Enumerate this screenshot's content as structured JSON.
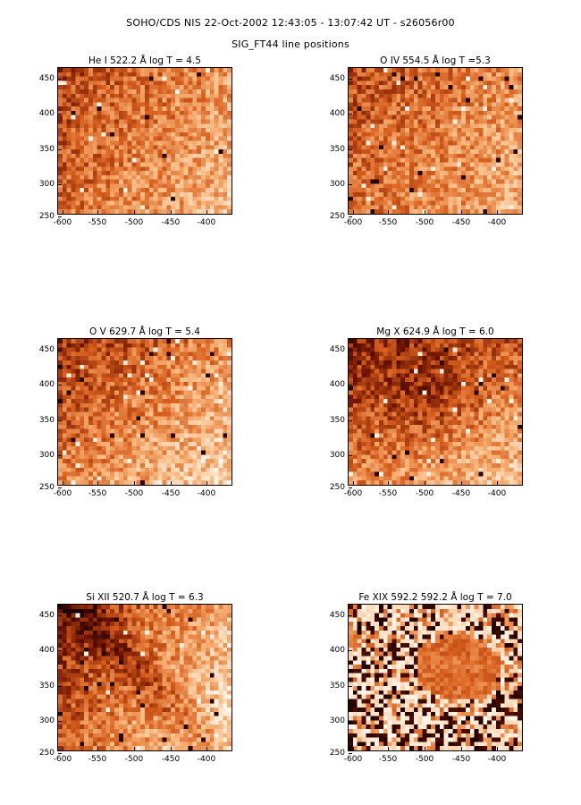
{
  "figure": {
    "title": "SOHO/CDS NIS  22-Oct-2002 12:43:05 - 13:07:42 UT - s26056r00",
    "subtitle": "SIG_FT44 line positions"
  },
  "axes": {
    "x_ticks": [
      "-600",
      "-550",
      "-500",
      "-450",
      "-400"
    ],
    "y_ticks": [
      "450",
      "400",
      "350",
      "300",
      "250"
    ]
  },
  "panels": [
    {
      "title": "He I  522.2 Å log T = 4.5"
    },
    {
      "title": "O IV  554.5 Å log T =5.3"
    },
    {
      "title": "O V  629.7 Å log T = 5.4"
    },
    {
      "title": "Mg X  624.9 Å log T = 6.0"
    },
    {
      "title": "Si XII  520.7 Å log T = 6.3"
    },
    {
      "title": "Fe XIX 592.2  592.2 Å log T = 7.0"
    }
  ],
  "colors": {
    "colormap": "red-temperature",
    "dark": "#3a0600",
    "mid": "#d8641c",
    "light": "#fff0dc"
  }
}
